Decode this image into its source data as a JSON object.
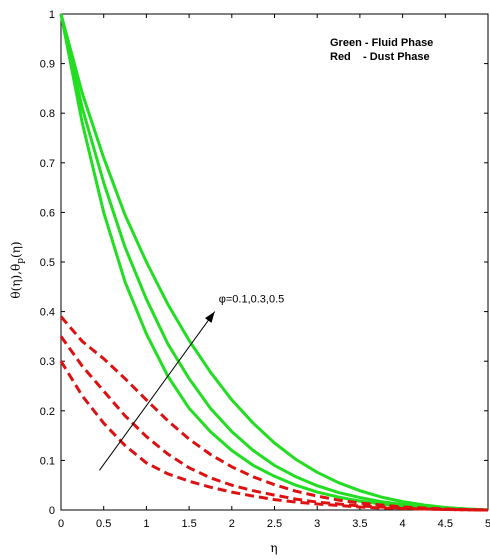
{
  "chart_data": {
    "type": "line",
    "xlabel": "η",
    "ylabel": "θ(η),θ",
    "ylabel_sub": "p",
    "ylabel_tail": "(η)",
    "xlim": [
      0,
      5
    ],
    "ylim": [
      0,
      1
    ],
    "x_ticks": [
      "0",
      "0.5",
      "1",
      "1.5",
      "2",
      "2.5",
      "3",
      "3.5",
      "4",
      "4.5",
      "5"
    ],
    "y_ticks": [
      "0",
      "0.1",
      "0.2",
      "0.3",
      "0.4",
      "0.5",
      "0.6",
      "0.7",
      "0.8",
      "0.9",
      "1"
    ],
    "grid": false,
    "legend": {
      "placement": "top-right",
      "lines": [
        "Green - Fluid Phase",
        "Red    - Dust Phase"
      ]
    },
    "annotation": {
      "text": "φ=0.1,0.3,0.5",
      "arrow_from": [
        0.45,
        0.08
      ],
      "arrow_to": [
        1.8,
        0.4
      ]
    },
    "colors": {
      "fluid": "#22dd22",
      "dust": "#dd1111"
    },
    "x": [
      0,
      0.25,
      0.5,
      0.75,
      1,
      1.25,
      1.5,
      1.75,
      2,
      2.25,
      2.5,
      2.75,
      3,
      3.25,
      3.5,
      3.75,
      4,
      4.25,
      4.5,
      4.75,
      5
    ],
    "series": [
      {
        "phase": "fluid",
        "style": "solid",
        "values": [
          1.0,
          0.78,
          0.6,
          0.46,
          0.355,
          0.27,
          0.205,
          0.158,
          0.12,
          0.09,
          0.068,
          0.05,
          0.036,
          0.026,
          0.018,
          0.012,
          0.008,
          0.005,
          0.003,
          0.001,
          0.0
        ]
      },
      {
        "phase": "fluid",
        "style": "solid",
        "values": [
          1.0,
          0.81,
          0.66,
          0.53,
          0.425,
          0.335,
          0.265,
          0.205,
          0.158,
          0.12,
          0.09,
          0.067,
          0.049,
          0.035,
          0.025,
          0.017,
          0.011,
          0.007,
          0.004,
          0.002,
          0.0
        ]
      },
      {
        "phase": "fluid",
        "style": "solid",
        "values": [
          1.0,
          0.84,
          0.71,
          0.595,
          0.5,
          0.415,
          0.342,
          0.278,
          0.222,
          0.175,
          0.135,
          0.102,
          0.076,
          0.055,
          0.039,
          0.026,
          0.017,
          0.01,
          0.005,
          0.002,
          0.0
        ]
      },
      {
        "phase": "dust",
        "style": "dashed",
        "values": [
          0.3,
          0.23,
          0.175,
          0.13,
          0.095,
          0.073,
          0.058,
          0.046,
          0.036,
          0.028,
          0.021,
          0.016,
          0.012,
          0.009,
          0.006,
          0.004,
          0.003,
          0.002,
          0.001,
          0.0005,
          0.0
        ]
      },
      {
        "phase": "dust",
        "style": "dashed",
        "values": [
          0.35,
          0.29,
          0.24,
          0.19,
          0.148,
          0.113,
          0.085,
          0.065,
          0.05,
          0.039,
          0.03,
          0.022,
          0.016,
          0.012,
          0.008,
          0.006,
          0.004,
          0.002,
          0.001,
          0.0005,
          0.0
        ]
      },
      {
        "phase": "dust",
        "style": "dashed",
        "values": [
          0.39,
          0.34,
          0.305,
          0.265,
          0.222,
          0.18,
          0.143,
          0.112,
          0.087,
          0.067,
          0.051,
          0.038,
          0.028,
          0.02,
          0.014,
          0.01,
          0.006,
          0.004,
          0.002,
          0.001,
          0.0
        ]
      }
    ]
  }
}
